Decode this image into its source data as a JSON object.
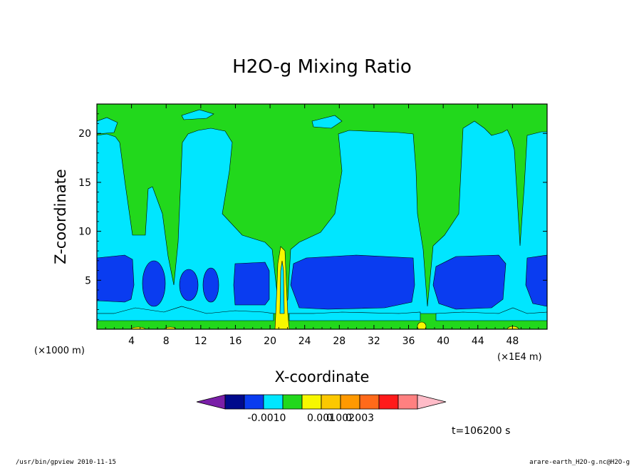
{
  "chart_data": {
    "type": "heatmap",
    "title": "H2O-g Mixing Ratio",
    "xlabel": "X-coordinate",
    "ylabel": "Z-coordinate",
    "x_unit_left": "(×1000 m)",
    "x_unit_right": "(×1E4 m)",
    "xlim": [
      0,
      52
    ],
    "ylim": [
      0,
      23
    ],
    "x_ticks": [
      4,
      8,
      12,
      16,
      20,
      24,
      28,
      32,
      36,
      40,
      44,
      48
    ],
    "y_ticks": [
      5,
      10,
      15,
      20
    ],
    "time_label": "t=106200 s",
    "colorbar": {
      "colors": [
        "#7a1fa8",
        "#000a8c",
        "#0a3cf0",
        "#00e6ff",
        "#22d81c",
        "#f7f700",
        "#fcc800",
        "#ff9900",
        "#ff6a1a",
        "#ff1a1a",
        "#ff8080",
        "#ffbcc8"
      ],
      "tick_labels": [
        "-0.001",
        "0",
        "0.001",
        "0.002",
        "0.003"
      ]
    },
    "fields": {
      "green": "#22d81c",
      "cyan": "#00e6ff",
      "blue": "#0a3cf0",
      "yellow": "#f7f700"
    }
  },
  "footer": {
    "left": "/usr/bin/gpview   2010-11-15",
    "right": "arare-earth_H2O-g.nc@H2O-g"
  }
}
